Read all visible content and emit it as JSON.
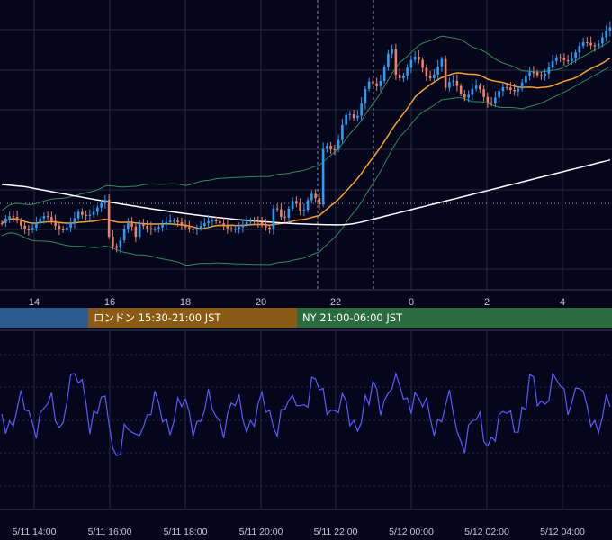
{
  "chart_data": [
    {
      "type": "candlestick",
      "panel": "price",
      "overlays": [
        "bollinger-bands",
        "moving-average-orange",
        "moving-average-white"
      ],
      "x_tick_labels": [
        "14",
        "16",
        "18",
        "20",
        "22",
        "0",
        "2",
        "4"
      ],
      "horizontal_reference_line": "dotted",
      "candle_colors": {
        "up": "#2a9df4",
        "down": "#e8836a"
      },
      "line_colors": {
        "bollinger": "#2e8b57",
        "ma_fast": "#f5a033",
        "ma_slow": "#ffffff"
      },
      "grid": true
    },
    {
      "type": "line",
      "panel": "oscillator",
      "line_color": "#5a5aff",
      "x_tick_labels": [
        "5/11 14:00",
        "5/11 16:00",
        "5/11 18:00",
        "5/11 20:00",
        "5/11 22:00",
        "5/12 00:00",
        "5/12 02:00",
        "5/12 04:00"
      ],
      "grid": true
    }
  ],
  "sessions": [
    {
      "label": "",
      "color": "#2d5a8e"
    },
    {
      "label": "ロンドン 15:30-21:00 JST",
      "color": "#8b5a14"
    },
    {
      "label": "NY 21:00-06:00 JST",
      "color": "#2a6b3f"
    }
  ],
  "colors": {
    "background": "#05051c",
    "grid": "#262a40",
    "axis_text": "#c8c8d0"
  }
}
